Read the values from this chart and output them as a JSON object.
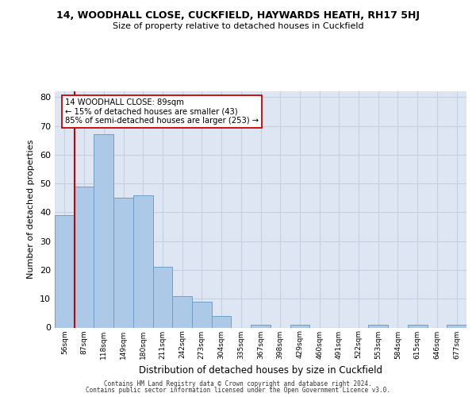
{
  "title1": "14, WOODHALL CLOSE, CUCKFIELD, HAYWARDS HEATH, RH17 5HJ",
  "title2": "Size of property relative to detached houses in Cuckfield",
  "xlabel": "Distribution of detached houses by size in Cuckfield",
  "ylabel": "Number of detached properties",
  "bar_values": [
    39,
    49,
    67,
    45,
    46,
    21,
    11,
    9,
    4,
    0,
    1,
    0,
    1,
    0,
    0,
    0,
    1,
    0,
    1,
    0,
    1
  ],
  "bin_labels": [
    "56sqm",
    "87sqm",
    "118sqm",
    "149sqm",
    "180sqm",
    "211sqm",
    "242sqm",
    "273sqm",
    "304sqm",
    "335sqm",
    "367sqm",
    "398sqm",
    "429sqm",
    "460sqm",
    "491sqm",
    "522sqm",
    "553sqm",
    "584sqm",
    "615sqm",
    "646sqm",
    "677sqm"
  ],
  "bar_color": "#adc9e8",
  "bar_edge_color": "#6fa0c8",
  "grid_color": "#c5d0e0",
  "background_color": "#dde6f2",
  "vline_x": 1,
  "vline_color": "#cc0000",
  "annotation_text": "14 WOODHALL CLOSE: 89sqm\n← 15% of detached houses are smaller (43)\n85% of semi-detached houses are larger (253) →",
  "annotation_box_color": "white",
  "annotation_box_edge": "#cc0000",
  "ylim": [
    0,
    82
  ],
  "yticks": [
    0,
    10,
    20,
    30,
    40,
    50,
    60,
    70,
    80
  ],
  "footer1": "Contains HM Land Registry data © Crown copyright and database right 2024.",
  "footer2": "Contains public sector information licensed under the Open Government Licence v3.0."
}
